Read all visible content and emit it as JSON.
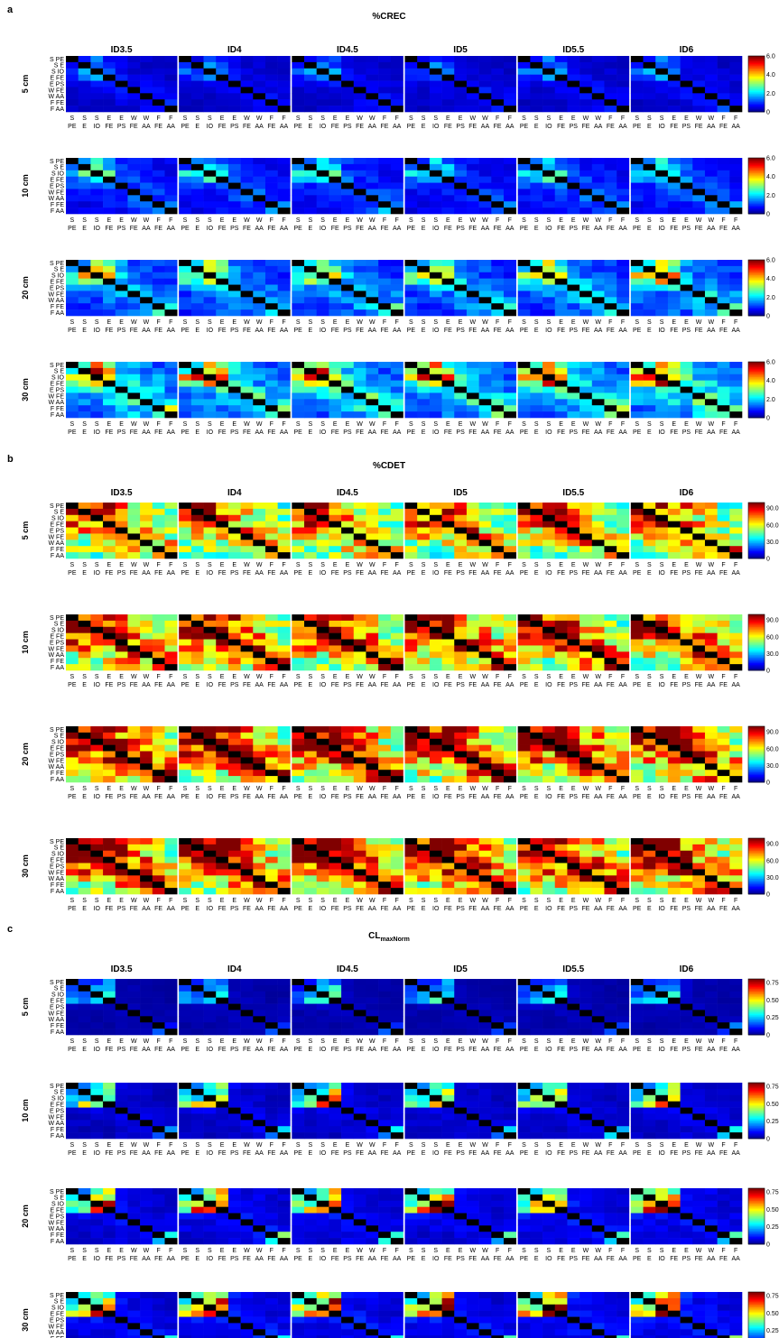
{
  "figure": {
    "panels": [
      {
        "letter": "a",
        "title": "%CREC",
        "title_sub": "",
        "cbar_ticks": [
          "6.0",
          "4.0",
          "2.0",
          "0"
        ],
        "cbar_max": 6.0
      },
      {
        "letter": "b",
        "title": "%CDET",
        "title_sub": "",
        "cbar_ticks": [
          "90.0",
          "60.0",
          "30.0",
          "0"
        ],
        "cbar_max": 100.0
      },
      {
        "letter": "c",
        "title": "CL",
        "title_sub": "maxNorm",
        "cbar_ticks": [
          "0.75",
          "0.50",
          "0.25",
          "0"
        ],
        "cbar_max": 0.8
      }
    ],
    "columns": [
      "ID3.5",
      "ID4",
      "ID4.5",
      "ID5",
      "ID5.5",
      "ID6"
    ],
    "rows": [
      "5 cm",
      "10 cm",
      "20 cm",
      "30 cm"
    ],
    "y_labels": [
      "S PE",
      "S E",
      "S IO",
      "E FE",
      "E PS",
      "W FE",
      "W AA",
      "F FE",
      "F AA"
    ],
    "x_labels_top": [
      "S",
      "S",
      "S",
      "E",
      "E",
      "W",
      "W",
      "F",
      "F"
    ],
    "x_labels_bottom": [
      "PE",
      "E",
      "IO",
      "FE",
      "PS",
      "FE",
      "AA",
      "FE",
      "AA"
    ]
  },
  "chart_data": [
    {
      "type": "heatmap",
      "title": "%CREC",
      "colormap": "jet",
      "value_range": [
        0,
        6.0
      ],
      "colorbar_ticks": [
        0,
        2.0,
        4.0,
        6.0
      ],
      "facet_rows": [
        "5 cm",
        "10 cm",
        "20 cm",
        "30 cm"
      ],
      "facet_columns": [
        "ID3.5",
        "ID4",
        "ID4.5",
        "ID5",
        "ID5.5",
        "ID6"
      ],
      "matrix_rows": [
        "S PE",
        "S E",
        "S IO",
        "E FE",
        "E PS",
        "W FE",
        "W AA",
        "F FE",
        "F AA"
      ],
      "matrix_columns": [
        "S PE",
        "S E",
        "S IO",
        "E FE",
        "E PS",
        "W FE",
        "W AA",
        "F FE",
        "F AA"
      ],
      "diagonal": "black",
      "base": [
        [
          0.0,
          1.0,
          1.6,
          1.2,
          0.8,
          0.6,
          0.6,
          0.5,
          0.5
        ],
        [
          1.0,
          0.0,
          1.8,
          1.4,
          0.8,
          0.6,
          0.6,
          0.5,
          0.5
        ],
        [
          1.6,
          1.8,
          0.0,
          1.8,
          0.9,
          0.7,
          0.6,
          0.6,
          0.5
        ],
        [
          1.2,
          1.4,
          1.8,
          0.0,
          1.0,
          0.8,
          0.7,
          0.6,
          0.6
        ],
        [
          0.8,
          0.8,
          0.9,
          1.0,
          0.0,
          0.9,
          0.8,
          0.7,
          0.6
        ],
        [
          0.6,
          0.6,
          0.7,
          0.8,
          0.9,
          0.0,
          1.0,
          0.8,
          0.7
        ],
        [
          0.6,
          0.6,
          0.6,
          0.7,
          0.8,
          1.0,
          0.0,
          0.9,
          0.8
        ],
        [
          0.5,
          0.5,
          0.6,
          0.6,
          0.7,
          0.8,
          0.9,
          0.0,
          1.2
        ],
        [
          0.5,
          0.5,
          0.5,
          0.6,
          0.6,
          0.7,
          0.8,
          1.2,
          0.0
        ]
      ],
      "row_scale": [
        0.8,
        1.3,
        2.0,
        2.6
      ],
      "column_scale": [
        1.0,
        0.95,
        1.0,
        0.95,
        1.0,
        1.05
      ]
    },
    {
      "type": "heatmap",
      "title": "%CDET",
      "colormap": "jet",
      "value_range": [
        0,
        100
      ],
      "colorbar_ticks": [
        0,
        30.0,
        60.0,
        90.0
      ],
      "facet_rows": [
        "5 cm",
        "10 cm",
        "20 cm",
        "30 cm"
      ],
      "facet_columns": [
        "ID3.5",
        "ID4",
        "ID4.5",
        "ID5",
        "ID5.5",
        "ID6"
      ],
      "matrix_rows": [
        "S PE",
        "S E",
        "S IO",
        "E FE",
        "E PS",
        "W FE",
        "W AA",
        "F FE",
        "F AA"
      ],
      "matrix_columns": [
        "S PE",
        "S E",
        "S IO",
        "E FE",
        "E PS",
        "W FE",
        "W AA",
        "F FE",
        "F AA"
      ],
      "diagonal": "black",
      "base": [
        [
          0,
          95,
          95,
          95,
          80,
          70,
          65,
          55,
          50
        ],
        [
          95,
          0,
          95,
          95,
          80,
          70,
          65,
          55,
          50
        ],
        [
          95,
          95,
          0,
          95,
          80,
          70,
          65,
          55,
          50
        ],
        [
          90,
          90,
          90,
          0,
          85,
          75,
          70,
          60,
          55
        ],
        [
          75,
          75,
          75,
          80,
          0,
          85,
          75,
          65,
          60
        ],
        [
          70,
          70,
          70,
          75,
          85,
          0,
          85,
          70,
          65
        ],
        [
          60,
          60,
          60,
          65,
          70,
          80,
          0,
          75,
          70
        ],
        [
          55,
          55,
          55,
          60,
          65,
          70,
          75,
          0,
          85
        ],
        [
          50,
          50,
          50,
          55,
          60,
          65,
          70,
          85,
          0
        ]
      ],
      "row_scale": [
        0.9,
        1.0,
        1.05,
        1.05
      ],
      "column_scale": [
        1.0,
        1.0,
        1.0,
        1.0,
        1.0,
        1.0
      ]
    },
    {
      "type": "heatmap",
      "title": "CL maxNorm",
      "colormap": "jet",
      "value_range": [
        0,
        0.8
      ],
      "colorbar_ticks": [
        0,
        0.25,
        0.5,
        0.75
      ],
      "facet_rows": [
        "5 cm",
        "10 cm",
        "20 cm",
        "30 cm"
      ],
      "facet_columns": [
        "ID3.5",
        "ID4",
        "ID4.5",
        "ID5",
        "ID5.5",
        "ID6"
      ],
      "matrix_rows": [
        "S PE",
        "S E",
        "S IO",
        "E FE",
        "E PS",
        "W FE",
        "W AA",
        "F FE",
        "F AA"
      ],
      "matrix_columns": [
        "S PE",
        "S E",
        "S IO",
        "E FE",
        "E PS",
        "W FE",
        "W AA",
        "F FE",
        "F AA"
      ],
      "diagonal": "black",
      "base": [
        [
          0.0,
          0.22,
          0.3,
          0.35,
          0.08,
          0.06,
          0.06,
          0.05,
          0.05
        ],
        [
          0.22,
          0.0,
          0.35,
          0.45,
          0.08,
          0.06,
          0.06,
          0.05,
          0.05
        ],
        [
          0.3,
          0.35,
          0.0,
          0.55,
          0.08,
          0.06,
          0.06,
          0.05,
          0.05
        ],
        [
          0.35,
          0.45,
          0.55,
          0.0,
          0.08,
          0.07,
          0.06,
          0.05,
          0.05
        ],
        [
          0.08,
          0.08,
          0.08,
          0.08,
          0.0,
          0.08,
          0.07,
          0.06,
          0.06
        ],
        [
          0.06,
          0.06,
          0.06,
          0.07,
          0.08,
          0.0,
          0.08,
          0.07,
          0.06
        ],
        [
          0.06,
          0.06,
          0.06,
          0.06,
          0.07,
          0.08,
          0.0,
          0.08,
          0.07
        ],
        [
          0.05,
          0.05,
          0.05,
          0.05,
          0.06,
          0.07,
          0.08,
          0.0,
          0.25
        ],
        [
          0.05,
          0.05,
          0.05,
          0.05,
          0.06,
          0.06,
          0.07,
          0.25,
          0.0
        ]
      ],
      "row_scale": [
        0.6,
        1.0,
        1.3,
        1.4
      ],
      "column_scale": [
        0.9,
        1.0,
        1.0,
        0.95,
        1.0,
        1.05
      ]
    }
  ]
}
